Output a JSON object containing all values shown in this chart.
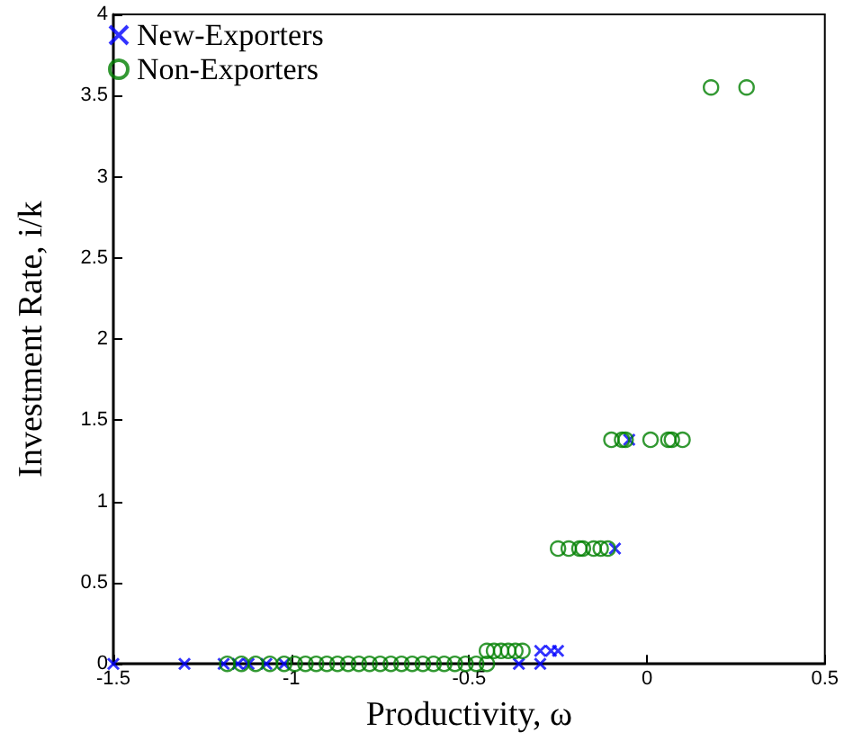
{
  "chart_data": {
    "type": "scatter",
    "xlabel": "Productivity, ω",
    "ylabel": "Investment Rate, i/k",
    "xlim": [
      -1.5,
      0.5
    ],
    "xticks": [
      -1.5,
      -1,
      -0.5,
      0,
      0.5
    ],
    "ylim": [
      0,
      4
    ],
    "yticks": [
      0,
      0.5,
      1,
      1.5,
      2,
      2.5,
      3,
      3.5,
      4
    ],
    "grid": false,
    "legend": "top left",
    "series": [
      {
        "name": "New-Exporters",
        "color": "#0000ff",
        "marker": "cross",
        "x": [
          -1.5,
          -1.3,
          -1.19,
          -1.15,
          -1.12,
          -1.07,
          -1.02,
          -0.36,
          -0.3,
          -0.3,
          -0.27,
          -0.25,
          -0.05,
          -0.09
        ],
        "values": [
          0,
          0,
          0,
          0,
          0,
          0,
          0,
          0,
          0,
          0.08,
          0.08,
          0.08,
          1.38,
          0.71
        ]
      },
      {
        "name": "Non-Exporters",
        "color": "#008000",
        "marker": "circle",
        "x": [
          -1.18,
          -1.14,
          -1.1,
          -1.06,
          -1.02,
          -0.99,
          -0.96,
          -0.93,
          -0.9,
          -0.87,
          -0.84,
          -0.81,
          -0.78,
          -0.75,
          -0.72,
          -0.69,
          -0.66,
          -0.63,
          -0.6,
          -0.57,
          -0.54,
          -0.51,
          -0.48,
          -0.45,
          -0.45,
          -0.43,
          -0.41,
          -0.39,
          -0.37,
          -0.35,
          -0.25,
          -0.22,
          -0.19,
          -0.18,
          -0.15,
          -0.13,
          -0.11,
          -0.1,
          -0.07,
          -0.06,
          0.01,
          0.06,
          0.07,
          0.1,
          0.18,
          0.28
        ],
        "values": [
          0,
          0,
          0,
          0,
          0,
          0,
          0,
          0,
          0,
          0,
          0,
          0,
          0,
          0,
          0,
          0,
          0,
          0,
          0,
          0,
          0,
          0,
          0,
          0,
          0.08,
          0.08,
          0.08,
          0.08,
          0.08,
          0.08,
          0.71,
          0.71,
          0.71,
          0.71,
          0.71,
          0.71,
          0.71,
          1.38,
          1.38,
          1.38,
          1.38,
          1.38,
          1.38,
          1.38,
          3.55,
          3.55
        ]
      }
    ]
  }
}
